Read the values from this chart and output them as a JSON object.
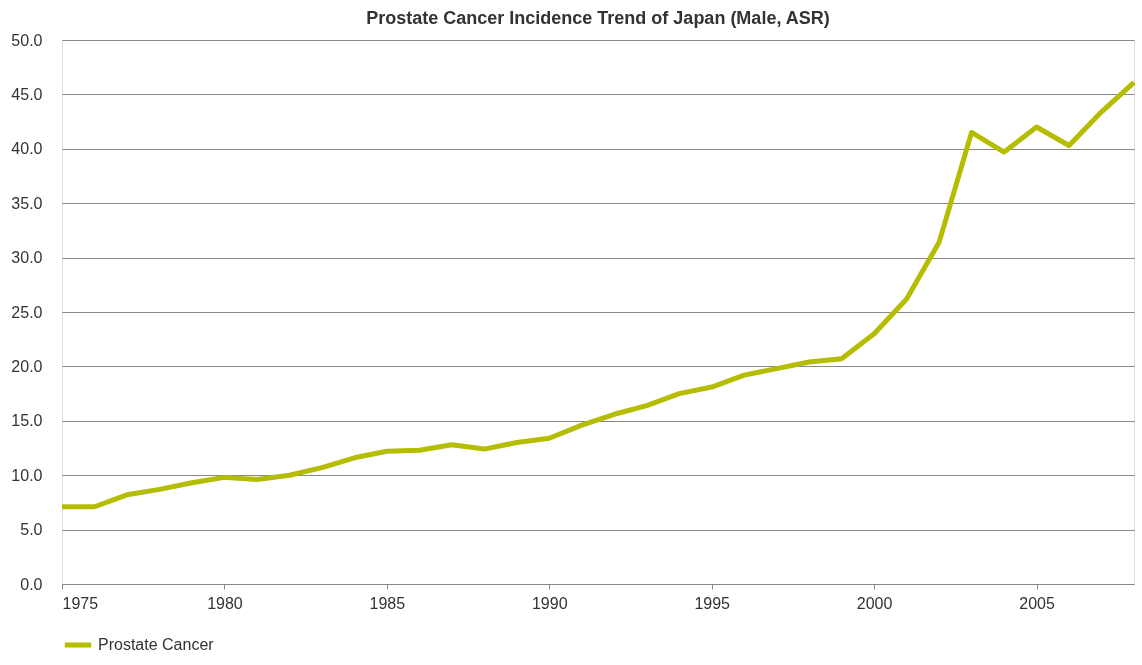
{
  "chart_data": {
    "type": "line",
    "title": "Prostate Cancer Incidence Trend of Japan (Male, ASR)",
    "x": [
      1975,
      1976,
      1977,
      1978,
      1979,
      1980,
      1981,
      1982,
      1983,
      1984,
      1985,
      1986,
      1987,
      1988,
      1989,
      1990,
      1991,
      1992,
      1993,
      1994,
      1995,
      1996,
      1997,
      1998,
      1999,
      2000,
      2001,
      2002,
      2003,
      2004,
      2005,
      2006,
      2007,
      2008
    ],
    "series": [
      {
        "name": "Prostate Cancer",
        "color": "#b5bd00",
        "values": [
          7.1,
          7.1,
          8.2,
          8.7,
          9.3,
          9.8,
          9.6,
          10.0,
          10.7,
          11.6,
          12.2,
          12.3,
          12.8,
          12.4,
          13.0,
          13.4,
          14.6,
          15.6,
          16.4,
          17.5,
          18.1,
          19.2,
          19.8,
          20.4,
          20.7,
          23.0,
          26.2,
          31.4,
          41.5,
          39.7,
          42.0,
          40.3,
          43.4,
          46.1
        ]
      }
    ],
    "xlim": [
      1975,
      2008
    ],
    "xticks": [
      1975,
      1980,
      1985,
      1990,
      1995,
      2000,
      2005
    ],
    "ylim": [
      0,
      50
    ],
    "yticks": [
      {
        "value": 0,
        "label": "0.0"
      },
      {
        "value": 5,
        "label": "5.0"
      },
      {
        "value": 10,
        "label": "10.0"
      },
      {
        "value": 15,
        "label": "15.0"
      },
      {
        "value": 20,
        "label": "20.0"
      },
      {
        "value": 25,
        "label": "25.0"
      },
      {
        "value": 30,
        "label": "30.0"
      },
      {
        "value": 35,
        "label": "35.0"
      },
      {
        "value": 40,
        "label": "40.0"
      },
      {
        "value": 45,
        "label": "45.0"
      },
      {
        "value": 50,
        "label": "50.0"
      }
    ],
    "grid": "y",
    "legend": "bottom",
    "marker": "none",
    "line_style": "solid"
  }
}
